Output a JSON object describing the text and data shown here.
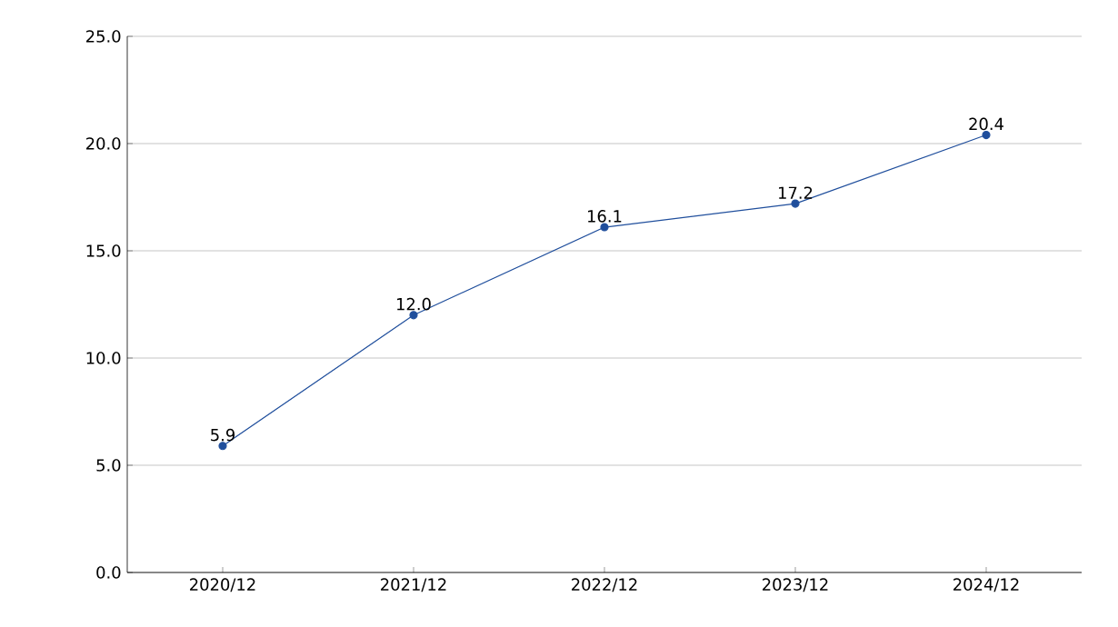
{
  "chart_data": {
    "type": "line",
    "categories": [
      "2020/12",
      "2021/12",
      "2022/12",
      "2023/12",
      "2024/12"
    ],
    "series": [
      {
        "color": "#1f4e9c",
        "values": [
          5.9,
          12.0,
          16.1,
          17.2,
          20.4
        ]
      }
    ],
    "value_labels": [
      "5.9",
      "12.0",
      "16.1",
      "17.2",
      "20.4"
    ],
    "ylim": [
      0,
      25
    ],
    "yticks": [
      {
        "value": 0,
        "label": "0.0"
      },
      {
        "value": 5,
        "label": "5.0"
      },
      {
        "value": 10,
        "label": "10.0"
      },
      {
        "value": 15,
        "label": "15.0"
      },
      {
        "value": 20,
        "label": "20.0"
      },
      {
        "value": 25,
        "label": "25.0"
      }
    ],
    "grid": "y",
    "marker": "circle",
    "line_style": "solid"
  }
}
